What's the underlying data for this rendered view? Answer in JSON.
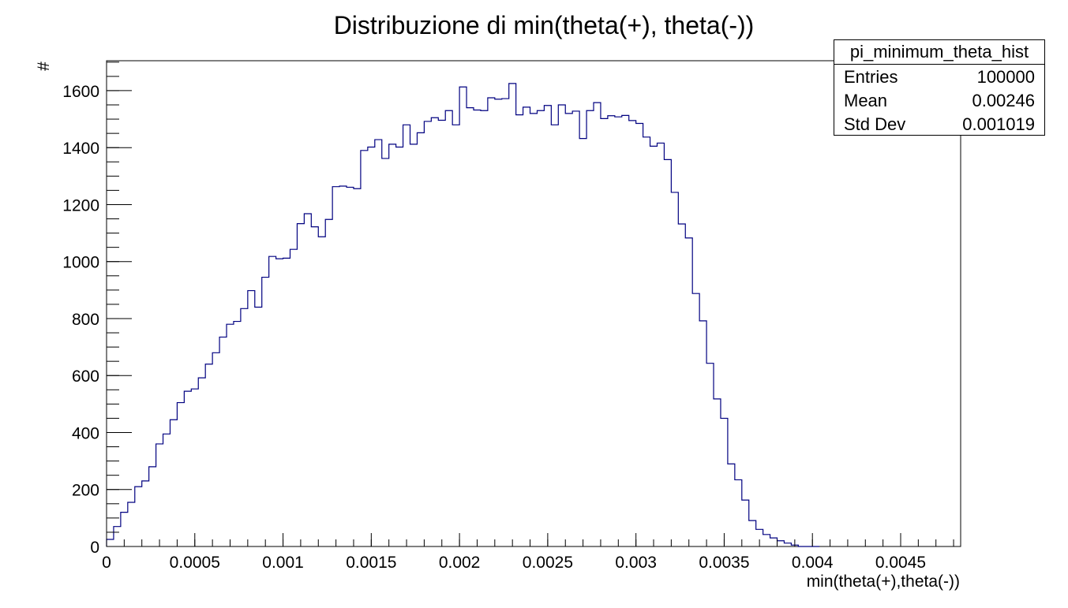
{
  "chart_data": {
    "type": "bar",
    "histogram": true,
    "title": "Distribuzione di min(theta(+), theta(-))",
    "xlabel": "min(theta(+),theta(-))",
    "ylabel": "#",
    "xlim": [
      0,
      0.00484
    ],
    "ylim": [
      0,
      1705
    ],
    "bin_width": 4e-05,
    "grid": false,
    "legend": "none",
    "line_color": "#000080",
    "x_ticks": [
      0,
      0.0005,
      0.001,
      0.0015,
      0.002,
      0.0025,
      0.003,
      0.0035,
      0.004,
      0.0045
    ],
    "x_tick_labels": [
      "0",
      "0.0005",
      "0.001",
      "0.0015",
      "0.002",
      "0.0025",
      "0.003",
      "0.0035",
      "0.004",
      "0.0045"
    ],
    "y_ticks": [
      0,
      200,
      400,
      600,
      800,
      1000,
      1200,
      1400,
      1600
    ],
    "y_tick_labels": [
      "0",
      "200",
      "400",
      "600",
      "800",
      "1000",
      "1200",
      "1400",
      "1600"
    ],
    "values": [
      25,
      70,
      120,
      155,
      210,
      230,
      280,
      360,
      395,
      445,
      505,
      545,
      553,
      592,
      640,
      680,
      735,
      780,
      790,
      835,
      898,
      840,
      945,
      1018,
      1010,
      1012,
      1043,
      1133,
      1168,
      1122,
      1087,
      1148,
      1263,
      1265,
      1261,
      1256,
      1390,
      1402,
      1428,
      1362,
      1412,
      1402,
      1480,
      1412,
      1452,
      1492,
      1505,
      1496,
      1530,
      1480,
      1613,
      1540,
      1532,
      1530,
      1575,
      1570,
      1572,
      1625,
      1515,
      1542,
      1520,
      1530,
      1548,
      1480,
      1550,
      1520,
      1528,
      1432,
      1530,
      1558,
      1502,
      1512,
      1508,
      1513,
      1495,
      1485,
      1437,
      1405,
      1416,
      1358,
      1243,
      1132,
      1083,
      888,
      792,
      643,
      518,
      450,
      290,
      234,
      163,
      91,
      60,
      42,
      30,
      20,
      12,
      5,
      0,
      0,
      0
    ]
  },
  "stats": {
    "title": "pi_minimum_theta_hist",
    "rows": [
      {
        "label": "Entries",
        "value": "100000"
      },
      {
        "label": "Mean",
        "value": "0.00246"
      },
      {
        "label": "Std Dev",
        "value": "0.001019"
      }
    ]
  }
}
